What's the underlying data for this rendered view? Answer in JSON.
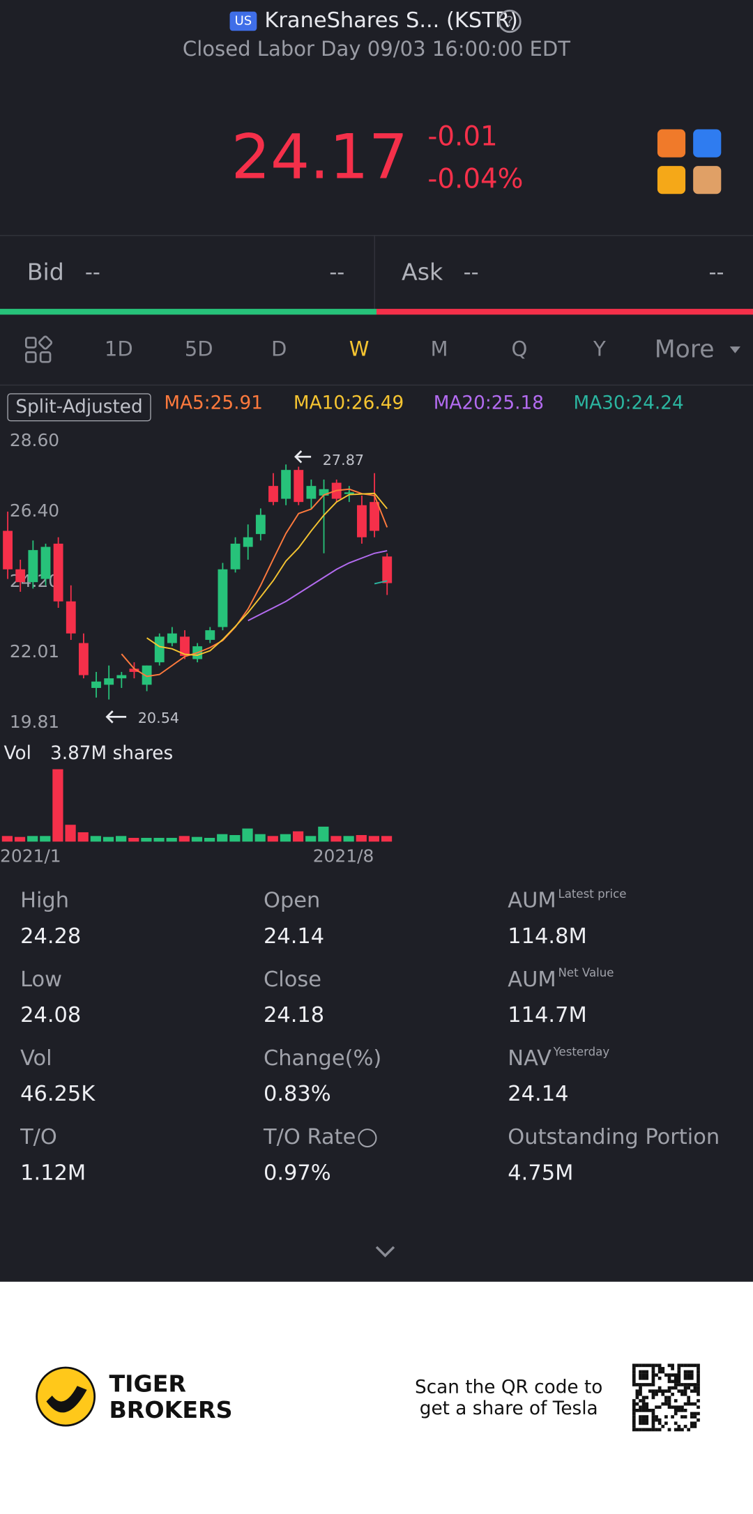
{
  "header": {
    "market": "US",
    "name": "KraneShares S... (KSTR)",
    "status": "Closed Labor Day 09/03 16:00:00 EDT"
  },
  "quote": {
    "price": "24.17",
    "change": "-0.01",
    "change_pct": "-0.04%"
  },
  "bid_ask": {
    "bid_label": "Bid",
    "bid": "--",
    "bid_size": "--",
    "ask_label": "Ask",
    "ask": "--",
    "ask_size": "--"
  },
  "tabs": [
    "1D",
    "5D",
    "D",
    "W",
    "M",
    "Q",
    "Y",
    "More"
  ],
  "active_tab": "W",
  "chart_data": {
    "type": "candlestick",
    "adjust_label": "Split-Adjusted",
    "categories": [
      "2021/1",
      null,
      null,
      null,
      null,
      null,
      null,
      null,
      null,
      null,
      null,
      null,
      null,
      null,
      null,
      null,
      null,
      null,
      null,
      null,
      null,
      null,
      null,
      null,
      null,
      null,
      null,
      "2021/8",
      null,
      null,
      null
    ],
    "open": [
      25.8,
      24.6,
      24.2,
      24.3,
      25.4,
      23.6,
      22.3,
      20.9,
      21.0,
      21.2,
      21.5,
      21.0,
      21.7,
      22.3,
      22.5,
      21.8,
      22.4,
      22.8,
      24.6,
      25.3,
      25.7,
      27.2,
      26.8,
      27.7,
      26.8,
      26.9,
      27.3,
      26.95,
      26.6,
      26.7,
      25.0
    ],
    "high": [
      26.4,
      24.9,
      25.5,
      25.4,
      25.6,
      24.1,
      22.6,
      21.4,
      21.6,
      21.4,
      21.7,
      21.6,
      22.6,
      22.8,
      22.7,
      22.3,
      22.8,
      24.8,
      25.6,
      26.0,
      26.5,
      27.6,
      27.87,
      27.8,
      27.4,
      27.4,
      27.4,
      27.2,
      26.9,
      27.6,
      25.1
    ],
    "low": [
      24.3,
      23.9,
      24.0,
      24.1,
      23.4,
      22.4,
      21.2,
      20.6,
      20.54,
      20.9,
      21.2,
      20.8,
      21.6,
      22.2,
      21.8,
      21.7,
      22.3,
      22.7,
      24.5,
      24.9,
      25.5,
      26.6,
      26.6,
      26.6,
      26.5,
      25.1,
      26.7,
      26.7,
      25.4,
      25.6,
      23.8
    ],
    "close": [
      24.6,
      24.2,
      25.2,
      25.3,
      23.6,
      22.6,
      21.3,
      21.1,
      21.2,
      21.3,
      21.4,
      21.6,
      22.5,
      22.6,
      21.9,
      22.2,
      22.7,
      24.6,
      25.4,
      25.6,
      26.3,
      26.7,
      27.7,
      26.7,
      27.2,
      27.1,
      26.8,
      27.0,
      25.6,
      25.8,
      24.17
    ],
    "ylim": [
      19.81,
      28.6
    ],
    "yticks": [
      {
        "value": 28.6,
        "label": "28.60"
      },
      {
        "value": 26.4,
        "label": "26.40"
      },
      {
        "value": 24.2,
        "label": "24.20"
      },
      22.01,
      19.81
    ],
    "up_color": "#27c27a",
    "down_color": "#f5304a",
    "series": [
      {
        "name": "MA5:25.91",
        "color": "#ff7a3d",
        "values": [
          null,
          null,
          null,
          null,
          null,
          null,
          null,
          null,
          null,
          21.96,
          21.5,
          21.26,
          21.32,
          21.6,
          21.88,
          22.0,
          22.16,
          22.38,
          22.8,
          23.36,
          24.1,
          24.92,
          25.72,
          26.34,
          26.48,
          26.92,
          27.06,
          27.1,
          26.96,
          26.9,
          25.91
        ]
      },
      {
        "name": "MA10:26.49",
        "color": "#f5c431",
        "values": [
          null,
          null,
          null,
          null,
          null,
          null,
          null,
          null,
          null,
          null,
          null,
          22.46,
          22.19,
          22.12,
          21.95,
          21.92,
          22.06,
          22.41,
          22.82,
          23.25,
          23.74,
          24.25,
          24.86,
          25.27,
          25.8,
          26.29,
          26.7,
          26.93,
          26.95,
          26.97,
          26.49
        ]
      },
      {
        "name": "MA20:25.18",
        "color": "#b36bf0",
        "values": [
          null,
          null,
          null,
          null,
          null,
          null,
          null,
          null,
          null,
          null,
          null,
          null,
          null,
          null,
          null,
          null,
          null,
          null,
          null,
          23.0,
          23.2,
          23.4,
          23.6,
          23.85,
          24.1,
          24.35,
          24.6,
          24.8,
          24.95,
          25.1,
          25.18
        ]
      },
      {
        "name": "MA30:24.24",
        "color": "#2bb5a0",
        "values": [
          null,
          null,
          null,
          null,
          null,
          null,
          null,
          null,
          null,
          null,
          null,
          null,
          null,
          null,
          null,
          null,
          null,
          null,
          null,
          null,
          null,
          null,
          null,
          null,
          null,
          null,
          null,
          null,
          null,
          24.15,
          24.24
        ]
      }
    ],
    "high_marker": 27.87,
    "low_marker": 20.54,
    "volume_label": "Vol",
    "volume_readout": "3.87M shares",
    "volume": [
      0.3,
      0.25,
      0.3,
      0.3,
      3.87,
      0.9,
      0.5,
      0.3,
      0.25,
      0.3,
      0.2,
      0.2,
      0.2,
      0.2,
      0.3,
      0.25,
      0.2,
      0.4,
      0.35,
      0.7,
      0.4,
      0.3,
      0.4,
      0.55,
      0.3,
      0.8,
      0.3,
      0.3,
      0.35,
      0.3,
      0.3
    ]
  },
  "stats": [
    {
      "label": "High",
      "value": "24.28"
    },
    {
      "label": "Open",
      "value": "24.14"
    },
    {
      "label": "AUM",
      "note": "Latest price",
      "value": "114.8M"
    },
    {
      "label": "Low",
      "value": "24.08"
    },
    {
      "label": "Close",
      "value": "24.18"
    },
    {
      "label": "AUM",
      "note": "Net Value",
      "value": "114.7M"
    },
    {
      "label": "Vol",
      "value": "46.25K"
    },
    {
      "label": "Change(%)",
      "value": "0.83%"
    },
    {
      "label": "NAV",
      "note": "Yesterday",
      "value": "24.14"
    },
    {
      "label": "T/O",
      "value": "1.12M"
    },
    {
      "label": "T/O Rate",
      "value": "0.97%"
    },
    {
      "label": "Outstanding Portion",
      "value": "4.75M"
    }
  ],
  "footer": {
    "brand_1": "TIGER",
    "brand_2": "BROKERS",
    "qr_text_1": "Scan the QR code to",
    "qr_text_2": "get a share of Tesla"
  }
}
